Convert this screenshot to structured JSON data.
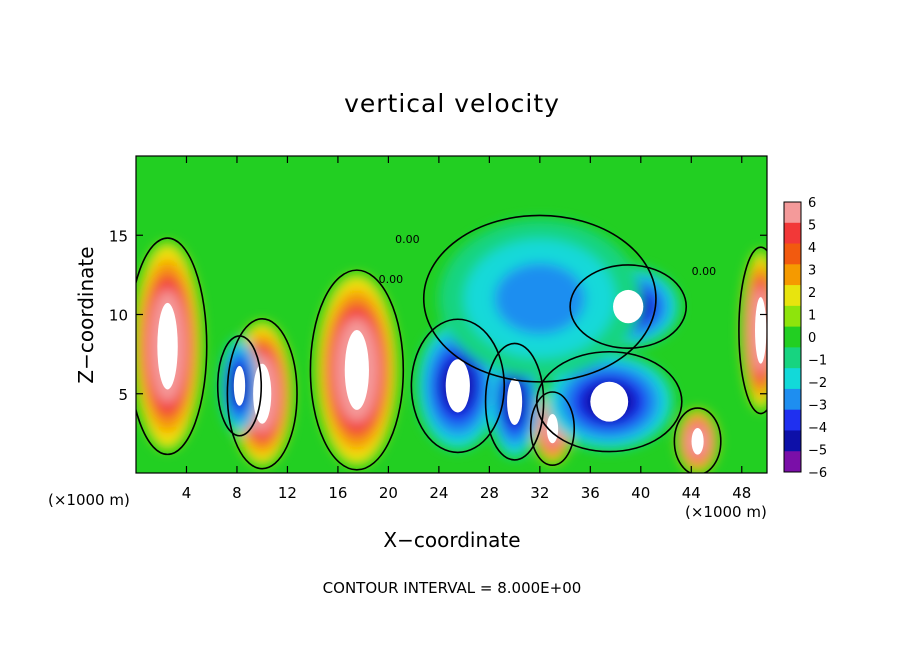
{
  "chart_data": {
    "type": "heatmap",
    "title": "vertical velocity",
    "xlabel": "X−coordinate",
    "ylabel": "Z−coordinate",
    "x_unit_left": "(×1000 m)",
    "x_unit_right": "(×1000 m)",
    "footer": "CONTOUR INTERVAL = 8.000E+00",
    "xlim": [
      0,
      50
    ],
    "ylim": [
      0,
      20
    ],
    "x_ticks": [
      4,
      8,
      12,
      16,
      20,
      24,
      28,
      32,
      36,
      40,
      44,
      48
    ],
    "x_tick_labels": [
      "4",
      "8",
      "12",
      "16",
      "20",
      "24",
      "28",
      "32",
      "36",
      "40",
      "44",
      "48"
    ],
    "y_ticks": [
      5,
      10,
      15
    ],
    "y_tick_labels": [
      "5",
      "10",
      "15"
    ],
    "contour_labels": [
      {
        "text": "0.00",
        "x": 20.2,
        "y": 12.0
      },
      {
        "text": "0.00",
        "x": 21.5,
        "y": 14.5
      },
      {
        "text": "0.00",
        "x": 45.0,
        "y": 12.5
      }
    ],
    "colorbar": {
      "levels": [
        "6",
        "5",
        "4",
        "3",
        "2",
        "1",
        "0",
        "−1",
        "−2",
        "−3",
        "−4",
        "−5",
        "−6"
      ],
      "colors": [
        "#f49a9a",
        "#f23838",
        "#f25a0f",
        "#f59a00",
        "#e8e40e",
        "#8ee40c",
        "#22cf22",
        "#17d480",
        "#12d9d9",
        "#1e8ef0",
        "#1f30f0",
        "#0d10a8",
        "#7a0fa8"
      ],
      "above_max_color": "#ffffff"
    },
    "features": [
      {
        "kind": "updraft",
        "x": 2.5,
        "y": 8.0,
        "rx": 2.7,
        "ry": 6.5
      },
      {
        "kind": "updraft",
        "x": 10.0,
        "y": 5.0,
        "rx": 2.4,
        "ry": 4.5
      },
      {
        "kind": "updraft",
        "x": 17.5,
        "y": 6.5,
        "rx": 3.2,
        "ry": 6.0
      },
      {
        "kind": "updraft",
        "x": 33.0,
        "y": 2.8,
        "rx": 1.5,
        "ry": 2.2
      },
      {
        "kind": "updraft",
        "x": 44.5,
        "y": 2.0,
        "rx": 1.6,
        "ry": 2.0
      },
      {
        "kind": "updraft",
        "x": 49.5,
        "y": 9.0,
        "rx": 1.5,
        "ry": 5.0
      },
      {
        "kind": "downdraft",
        "x": 25.5,
        "y": 5.5,
        "rx": 3.2,
        "ry": 4.0
      },
      {
        "kind": "downdraft",
        "x": 30.0,
        "y": 4.5,
        "rx": 2.0,
        "ry": 3.5
      },
      {
        "kind": "downdraft",
        "x": 37.5,
        "y": 4.5,
        "rx": 5.0,
        "ry": 3.0
      },
      {
        "kind": "downdraft",
        "x": 8.2,
        "y": 5.5,
        "rx": 1.5,
        "ry": 3.0
      },
      {
        "kind": "downdraft",
        "x": 39.0,
        "y": 10.5,
        "rx": 4.0,
        "ry": 2.5
      },
      {
        "kind": "weak-downdraft",
        "x": 32.0,
        "y": 11.0,
        "rx": 8.0,
        "ry": 5.0
      }
    ]
  }
}
